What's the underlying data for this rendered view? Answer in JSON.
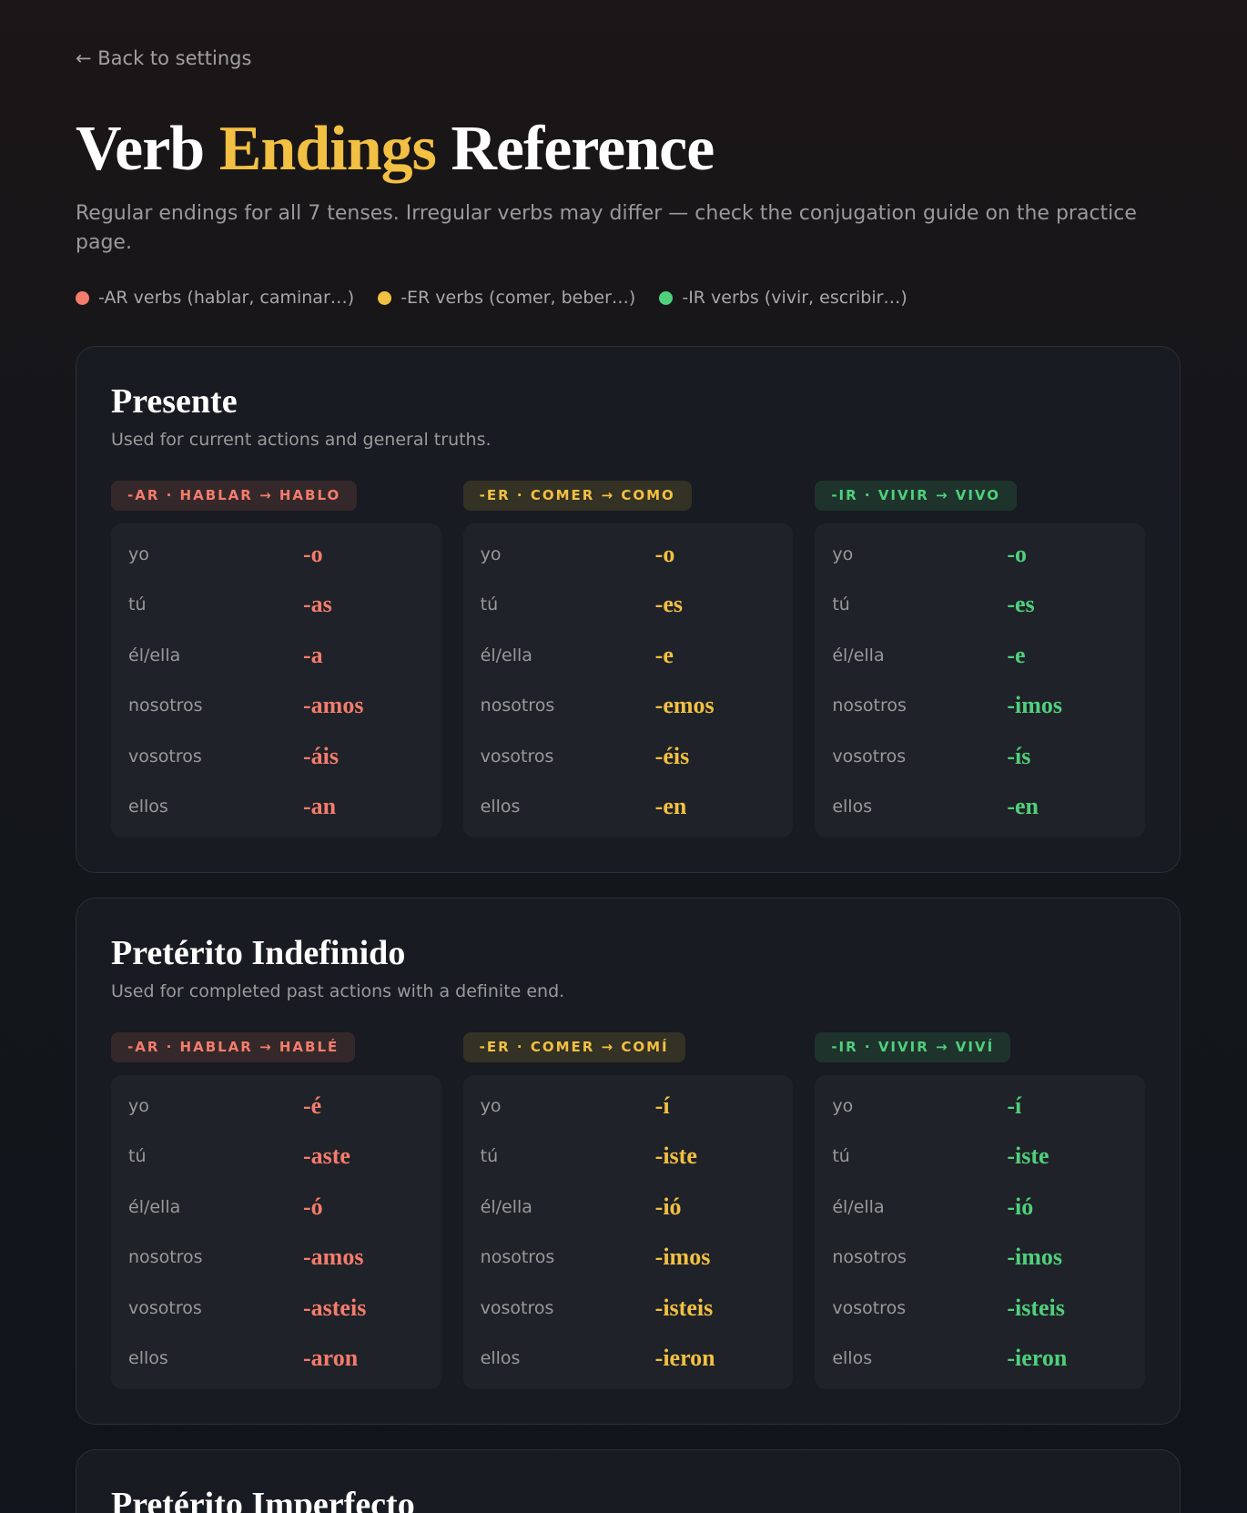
{
  "back_link": "← Back to settings",
  "header": {
    "title_before": "Verb",
    "title_highlight": "Endings",
    "title_after": "Reference",
    "subtitle": "Regular endings for all 7 tenses. Irregular verbs may differ — check the conjugation guide on the practice page."
  },
  "legend": [
    {
      "label": "-AR verbs (hablar, caminar…)",
      "color": "#f47c6c"
    },
    {
      "label": "-ER verbs (comer, beber…)",
      "color": "#f2c042"
    },
    {
      "label": "-IR verbs (vivir, escribir…)",
      "color": "#4fd07c"
    }
  ],
  "tenses": [
    {
      "name": "Presente",
      "description": "Used for current actions and general truths.",
      "groups": [
        {
          "badge": "-AR · HABLAR → HABLO",
          "rows": [
            [
              "yo",
              "-o"
            ],
            [
              "tú",
              "-as"
            ],
            [
              "él/ella",
              "-a"
            ],
            [
              "nosotros",
              "-amos"
            ],
            [
              "vosotros",
              "-áis"
            ],
            [
              "ellos",
              "-an"
            ]
          ]
        },
        {
          "badge": "-ER · COMER → COMO",
          "rows": [
            [
              "yo",
              "-o"
            ],
            [
              "tú",
              "-es"
            ],
            [
              "él/ella",
              "-e"
            ],
            [
              "nosotros",
              "-emos"
            ],
            [
              "vosotros",
              "-éis"
            ],
            [
              "ellos",
              "-en"
            ]
          ]
        },
        {
          "badge": "-IR · VIVIR → VIVO",
          "rows": [
            [
              "yo",
              "-o"
            ],
            [
              "tú",
              "-es"
            ],
            [
              "él/ella",
              "-e"
            ],
            [
              "nosotros",
              "-imos"
            ],
            [
              "vosotros",
              "-ís"
            ],
            [
              "ellos",
              "-en"
            ]
          ]
        }
      ]
    },
    {
      "name": "Pretérito Indefinido",
      "description": "Used for completed past actions with a definite end.",
      "groups": [
        {
          "badge": "-AR · HABLAR → HABLÉ",
          "rows": [
            [
              "yo",
              "-é"
            ],
            [
              "tú",
              "-aste"
            ],
            [
              "él/ella",
              "-ó"
            ],
            [
              "nosotros",
              "-amos"
            ],
            [
              "vosotros",
              "-asteis"
            ],
            [
              "ellos",
              "-aron"
            ]
          ]
        },
        {
          "badge": "-ER · COMER → COMÍ",
          "rows": [
            [
              "yo",
              "-í"
            ],
            [
              "tú",
              "-iste"
            ],
            [
              "él/ella",
              "-ió"
            ],
            [
              "nosotros",
              "-imos"
            ],
            [
              "vosotros",
              "-isteis"
            ],
            [
              "ellos",
              "-ieron"
            ]
          ]
        },
        {
          "badge": "-IR · VIVIR → VIVÍ",
          "rows": [
            [
              "yo",
              "-í"
            ],
            [
              "tú",
              "-iste"
            ],
            [
              "él/ella",
              "-ió"
            ],
            [
              "nosotros",
              "-imos"
            ],
            [
              "vosotros",
              "-isteis"
            ],
            [
              "ellos",
              "-ieron"
            ]
          ]
        }
      ]
    },
    {
      "name": "Pretérito Imperfecto"
    }
  ]
}
